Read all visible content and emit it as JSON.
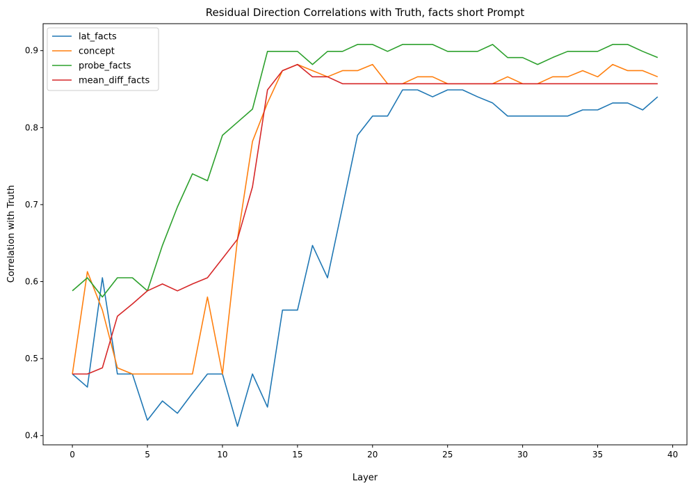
{
  "chart_data": {
    "type": "line",
    "title": "Residual Direction Correlations with Truth, facts short Prompt",
    "xlabel": "Layer",
    "ylabel": "Correlation with Truth",
    "xlim": [
      -1.95,
      40.95
    ],
    "ylim": [
      0.388,
      0.935
    ],
    "xticks": [
      0,
      5,
      10,
      15,
      20,
      25,
      30,
      35,
      40
    ],
    "yticks": [
      0.4,
      0.5,
      0.6,
      0.7,
      0.8,
      0.9
    ],
    "xtick_labels": [
      "0",
      "5",
      "10",
      "15",
      "20",
      "25",
      "30",
      "35",
      "40"
    ],
    "ytick_labels": [
      "0.4",
      "0.5",
      "0.6",
      "0.7",
      "0.8",
      "0.9"
    ],
    "grid": false,
    "legend_position": "top-left",
    "x": [
      0,
      1,
      2,
      3,
      4,
      5,
      6,
      7,
      8,
      9,
      10,
      11,
      12,
      13,
      14,
      15,
      16,
      17,
      18,
      19,
      20,
      21,
      22,
      23,
      24,
      25,
      26,
      27,
      28,
      29,
      30,
      31,
      32,
      33,
      34,
      35,
      36,
      37,
      38,
      39
    ],
    "series": [
      {
        "name": "lat_facts",
        "color": "#1f77b4",
        "values": [
          0.48,
          0.463,
          0.605,
          0.48,
          0.48,
          0.42,
          0.445,
          0.429,
          0.455,
          0.48,
          0.48,
          0.412,
          0.48,
          0.437,
          0.563,
          0.563,
          0.647,
          0.605,
          0.697,
          0.79,
          0.815,
          0.815,
          0.849,
          0.849,
          0.84,
          0.849,
          0.849,
          0.84,
          0.832,
          0.815,
          0.815,
          0.815,
          0.815,
          0.815,
          0.823,
          0.823,
          0.832,
          0.832,
          0.823,
          0.84
        ]
      },
      {
        "name": "concept",
        "color": "#ff7f0e",
        "values": [
          0.48,
          0.613,
          0.563,
          0.488,
          0.48,
          0.48,
          0.48,
          0.48,
          0.48,
          0.58,
          0.48,
          0.655,
          0.782,
          0.832,
          0.874,
          0.882,
          0.874,
          0.866,
          0.874,
          0.874,
          0.882,
          0.857,
          0.857,
          0.866,
          0.866,
          0.857,
          0.857,
          0.857,
          0.857,
          0.866,
          0.857,
          0.857,
          0.866,
          0.866,
          0.874,
          0.866,
          0.882,
          0.874,
          0.874,
          0.866
        ]
      },
      {
        "name": "probe_facts",
        "color": "#2ca02c",
        "values": [
          0.588,
          0.605,
          0.58,
          0.605,
          0.605,
          0.588,
          0.647,
          0.697,
          0.74,
          0.731,
          0.79,
          0.807,
          0.824,
          0.899,
          0.899,
          0.899,
          0.882,
          0.899,
          0.899,
          0.908,
          0.908,
          0.899,
          0.908,
          0.908,
          0.908,
          0.899,
          0.899,
          0.899,
          0.908,
          0.891,
          0.891,
          0.882,
          0.891,
          0.899,
          0.899,
          0.899,
          0.908,
          0.908,
          0.899,
          0.891
        ]
      },
      {
        "name": "mean_diff_facts",
        "color": "#d62728",
        "values": [
          0.48,
          0.48,
          0.488,
          0.555,
          0.571,
          0.588,
          0.597,
          0.588,
          0.597,
          0.605,
          0.63,
          0.655,
          0.723,
          0.849,
          0.874,
          0.882,
          0.866,
          0.866,
          0.857,
          0.857,
          0.857,
          0.857,
          0.857,
          0.857,
          0.857,
          0.857,
          0.857,
          0.857,
          0.857,
          0.857,
          0.857,
          0.857,
          0.857,
          0.857,
          0.857,
          0.857,
          0.857,
          0.857,
          0.857,
          0.857
        ]
      }
    ]
  }
}
